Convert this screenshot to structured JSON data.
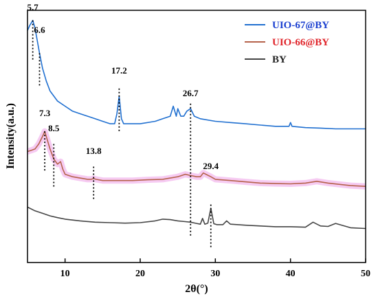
{
  "chart_data": {
    "type": "line",
    "xlabel": "2θ(°)",
    "ylabel": "Intensity(a.u.)",
    "xlim": [
      5,
      50
    ],
    "xticks": [
      "10",
      "20",
      "30",
      "40",
      "50"
    ],
    "xtick_values": [
      10,
      20,
      30,
      40,
      50
    ],
    "y_ticks_shown": false,
    "legend_position": "top-right",
    "series": [
      {
        "name": "UIO-67@BY",
        "color": "#1f6fd0",
        "highlight": "",
        "x": [
          5,
          5.3,
          5.7,
          6.0,
          6.3,
          6.6,
          7.0,
          7.5,
          8,
          9,
          10,
          11,
          12,
          13,
          14,
          15,
          16,
          16.6,
          16.9,
          17.2,
          17.5,
          17.8,
          18,
          20,
          22,
          23,
          24,
          24.4,
          24.8,
          25.0,
          25.4,
          25.8,
          26.2,
          26.7,
          27.2,
          28,
          30,
          32,
          34,
          36,
          38,
          39.8,
          40,
          40.2,
          42,
          44,
          46,
          48,
          50
        ],
        "y": [
          92,
          94,
          96,
          93,
          88,
          83,
          77,
          72,
          68,
          64,
          62,
          60,
          59,
          58,
          57,
          56,
          55,
          55,
          59,
          66,
          57,
          55,
          55,
          55,
          56,
          57,
          58,
          62,
          58,
          61,
          58,
          58,
          60,
          61,
          58,
          57,
          56,
          55.5,
          55,
          54.5,
          54,
          54,
          55.5,
          54,
          53.5,
          53.3,
          53,
          53,
          53
        ]
      },
      {
        "name": "UIO-66@BY",
        "color": "#b5624a",
        "highlight": "#f4c2f0",
        "x": [
          5,
          5.5,
          6,
          6.5,
          7.0,
          7.3,
          7.6,
          8.0,
          8.5,
          9.0,
          9.4,
          9.7,
          10,
          11,
          12,
          13,
          13.5,
          13.8,
          14.1,
          15,
          17,
          19,
          21,
          23,
          25,
          26,
          26.7,
          27.5,
          28,
          28.4,
          29.4,
          30,
          32,
          34,
          36,
          38,
          40,
          42,
          43.5,
          45,
          48,
          50
        ],
        "y": [
          44,
          44.5,
          45,
          47,
          50,
          52,
          49,
          45,
          41,
          39,
          40,
          37,
          35,
          34,
          33.5,
          33,
          33,
          33.3,
          33,
          32.5,
          32.5,
          32.5,
          32.8,
          33,
          34,
          35,
          34.5,
          34,
          34,
          35.5,
          34,
          33,
          32.5,
          32,
          31.5,
          31.3,
          31.2,
          31.5,
          32.2,
          31.5,
          30.5,
          30.2
        ]
      },
      {
        "name": "BY",
        "color": "#444444",
        "highlight": "",
        "x": [
          5,
          6,
          7,
          8,
          9,
          10,
          12,
          14,
          16,
          18,
          20,
          22,
          23,
          24,
          25,
          26,
          26.7,
          27.5,
          28,
          28.3,
          28.6,
          29,
          29.4,
          29.8,
          30.2,
          31,
          31.5,
          32,
          34,
          36,
          38,
          40,
          42,
          43,
          44,
          45,
          46,
          48,
          50
        ],
        "y": [
          22,
          20.5,
          19.5,
          18.5,
          17.8,
          17.2,
          16.5,
          16,
          15.8,
          15.6,
          15.8,
          16.5,
          17.2,
          17,
          16.5,
          16.2,
          16,
          15.5,
          15.2,
          17.5,
          15.2,
          15.6,
          21.5,
          15.4,
          15,
          15,
          16.5,
          15.2,
          14.8,
          14.5,
          14.2,
          14.2,
          14,
          16,
          14.5,
          14.3,
          15.5,
          13.8,
          13.5
        ]
      }
    ],
    "annotations": [
      {
        "label": "5.7",
        "x": 5.7,
        "y_from": 96,
        "y_to": 80,
        "y_label": 100
      },
      {
        "label": "6.6",
        "x": 6.6,
        "y_from": 83,
        "y_to": 70,
        "y_label": 91
      },
      {
        "label": "17.2",
        "x": 17.2,
        "y_from": 69,
        "y_to": 52,
        "y_label": 75
      },
      {
        "label": "26.7",
        "x": 26.7,
        "y_from": 63,
        "y_to": 10,
        "y_label": 66
      },
      {
        "label": "7.3",
        "x": 7.3,
        "y_from": 52,
        "y_to": 36,
        "y_label": 58
      },
      {
        "label": "8.5",
        "x": 8.5,
        "y_from": 47,
        "y_to": 30,
        "y_label": 52
      },
      {
        "label": "13.8",
        "x": 13.8,
        "y_from": 38,
        "y_to": 25,
        "y_label": 43
      },
      {
        "label": "29.4",
        "x": 29.4,
        "y_from": 23,
        "y_to": 6,
        "y_label": 37
      }
    ]
  }
}
